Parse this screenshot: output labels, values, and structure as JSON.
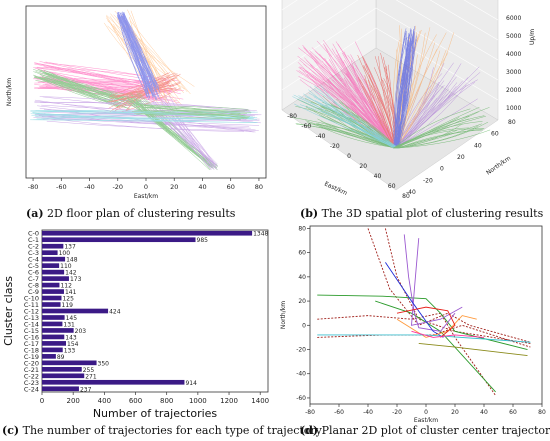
{
  "captions": {
    "a_letter": "(a)",
    "a_text": "2D floor plan of clustering results",
    "b_letter": "(b)",
    "b_text": "The 3D spatial plot of clustering results",
    "c_letter": "(c)",
    "c_text": "The number of trajectories for each type of trajectory",
    "d_letter": "(d)",
    "d_text": "Planar 2D plot of cluster center trajectories"
  },
  "colors": {
    "bar": "#3b1a86",
    "red": "#e8221b",
    "blue": "#1f2bd8",
    "green": "#2a9a2a",
    "magenta": "#ff2fa0",
    "purple": "#9b59d0",
    "orange": "#ff9a3c",
    "darkred": "#a0201a",
    "cyan": "#3bbfcf",
    "olive": "#8a8a1a"
  },
  "chart_data": [
    {
      "type": "line",
      "panel": "a",
      "xlabel": "East/km",
      "ylabel": "North/km",
      "xlim": [
        -85,
        85
      ],
      "ylim": [
        -65,
        85
      ],
      "xticks": [
        -80,
        -60,
        -40,
        -20,
        0,
        20,
        40,
        60,
        80
      ],
      "yticks": [],
      "grid": false
    },
    {
      "type": "line",
      "panel": "b",
      "xlabel": "East/km",
      "ylabel": "North/km",
      "zlabel": "Up/m",
      "xticks": [
        -80,
        -60,
        -40,
        -20,
        0,
        20,
        40,
        60,
        80
      ],
      "yticks": [
        -40,
        -20,
        0,
        20,
        40,
        60,
        80
      ],
      "zticks": [
        1000,
        2000,
        3000,
        4000,
        5000,
        6000
      ],
      "grid": true
    },
    {
      "type": "bar",
      "panel": "c",
      "orientation": "horizontal",
      "xlabel": "Number of trajectories",
      "ylabel": "Cluster class",
      "xlim": [
        0,
        1450
      ],
      "xticks": [
        0,
        200,
        400,
        600,
        800,
        1000,
        1200,
        1400
      ],
      "categories": [
        "C-0",
        "C-1",
        "C-2",
        "C-3",
        "C-4",
        "C-5",
        "C-6",
        "C-7",
        "C-8",
        "C-9",
        "C-10",
        "C-11",
        "C-12",
        "C-13",
        "C-14",
        "C-15",
        "C-16",
        "C-17",
        "C-18",
        "C-19",
        "C-20",
        "C-21",
        "C-22",
        "C-23",
        "C-24"
      ],
      "values": [
        1348,
        985,
        137,
        100,
        148,
        110,
        142,
        173,
        112,
        141,
        125,
        119,
        424,
        145,
        131,
        203,
        143,
        154,
        133,
        89,
        350,
        255,
        271,
        914,
        237
      ]
    },
    {
      "type": "line",
      "panel": "d",
      "xlabel": "East/km",
      "ylabel": "North/km",
      "xlim": [
        -80,
        80
      ],
      "ylim": [
        -65,
        82
      ],
      "xticks": [
        -80,
        -60,
        -40,
        -20,
        0,
        20,
        40,
        60,
        80
      ],
      "yticks": [
        -60,
        -40,
        -20,
        0,
        20,
        40,
        60,
        80
      ],
      "grid": false
    }
  ]
}
